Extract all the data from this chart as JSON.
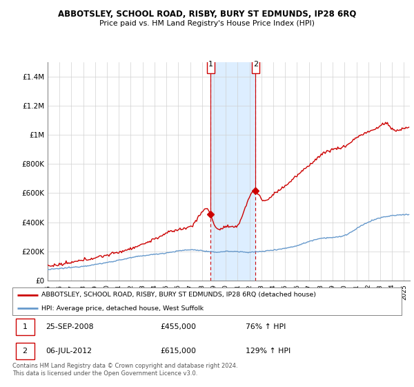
{
  "title": "ABBOTSLEY, SCHOOL ROAD, RISBY, BURY ST EDMUNDS, IP28 6RQ",
  "subtitle": "Price paid vs. HM Land Registry's House Price Index (HPI)",
  "legend_line1": "ABBOTSLEY, SCHOOL ROAD, RISBY, BURY ST EDMUNDS, IP28 6RQ (detached house)",
  "legend_line2": "HPI: Average price, detached house, West Suffolk",
  "annotation1_date": "25-SEP-2008",
  "annotation1_price": "£455,000",
  "annotation1_hpi": "76% ↑ HPI",
  "annotation2_date": "06-JUL-2012",
  "annotation2_price": "£615,000",
  "annotation2_hpi": "129% ↑ HPI",
  "footer": "Contains HM Land Registry data © Crown copyright and database right 2024.\nThis data is licensed under the Open Government Licence v3.0.",
  "red_color": "#cc0000",
  "blue_color": "#6699cc",
  "highlight_color": "#ddeeff",
  "highlight_border": "#cc0000",
  "ylim": [
    0,
    1500000
  ],
  "yticks": [
    0,
    200000,
    400000,
    600000,
    800000,
    1000000,
    1200000,
    1400000
  ],
  "ytick_labels": [
    "£0",
    "£200K",
    "£400K",
    "£600K",
    "£800K",
    "£1M",
    "£1.2M",
    "£1.4M"
  ],
  "sale1_x": 2008.73,
  "sale1_y": 455000,
  "sale2_x": 2012.51,
  "sale2_y": 615000,
  "xmin": 1995,
  "xmax": 2025.5
}
